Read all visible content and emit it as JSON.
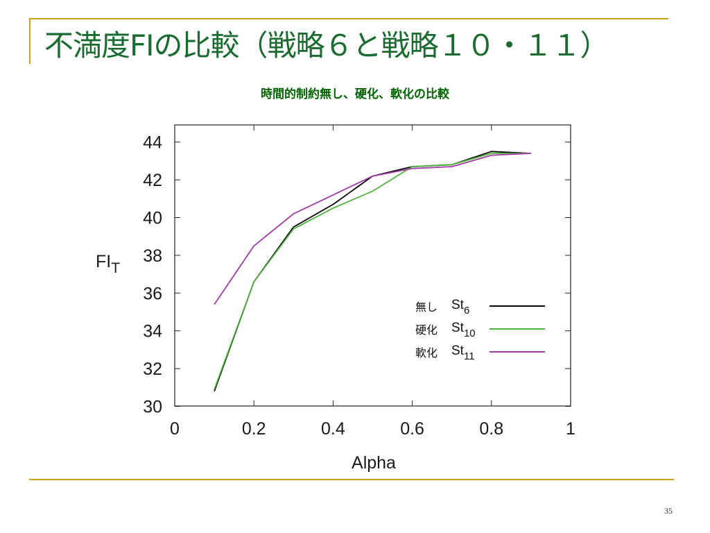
{
  "slide": {
    "title": "不満度FIの比較（戦略６と戦略１０・１１）",
    "page_number": "35"
  },
  "colors": {
    "title": "#1a6b30",
    "chart_title": "#006400",
    "rule": "#d4a017",
    "st6": "#000000",
    "st10": "#4db33d",
    "st11": "#a23aa8"
  },
  "chart_data": {
    "type": "line",
    "title": "時間的制約無し、硬化、軟化の比較",
    "xlabel": "Alpha",
    "ylabel": "FI",
    "ylabel_sub": "T",
    "xlim": [
      0,
      1
    ],
    "ylim": [
      30,
      45
    ],
    "xticks": [
      "0",
      "0.2",
      "0.4",
      "0.6",
      "0.8",
      "1"
    ],
    "yticks": [
      "30",
      "32",
      "34",
      "36",
      "38",
      "40",
      "42",
      "44"
    ],
    "grid": false,
    "legend_position": "bottom-right",
    "x": [
      0.1,
      0.2,
      0.3,
      0.4,
      0.5,
      0.6,
      0.7,
      0.8,
      0.9
    ],
    "series": [
      {
        "name": "無し",
        "legend_main": "St",
        "legend_sub": "6",
        "color": "#000000",
        "values": [
          30.8,
          36.6,
          39.5,
          40.7,
          42.2,
          42.7,
          42.8,
          43.5,
          43.4
        ]
      },
      {
        "name": "硬化",
        "legend_main": "St",
        "legend_sub": "10",
        "color": "#4db33d",
        "values": [
          30.9,
          36.6,
          39.4,
          40.5,
          41.4,
          42.7,
          42.8,
          43.4,
          43.4
        ]
      },
      {
        "name": "軟化",
        "legend_main": "St",
        "legend_sub": "11",
        "color": "#a23aa8",
        "values": [
          35.4,
          38.5,
          40.2,
          41.2,
          42.2,
          42.6,
          42.7,
          43.3,
          43.4
        ]
      }
    ]
  }
}
